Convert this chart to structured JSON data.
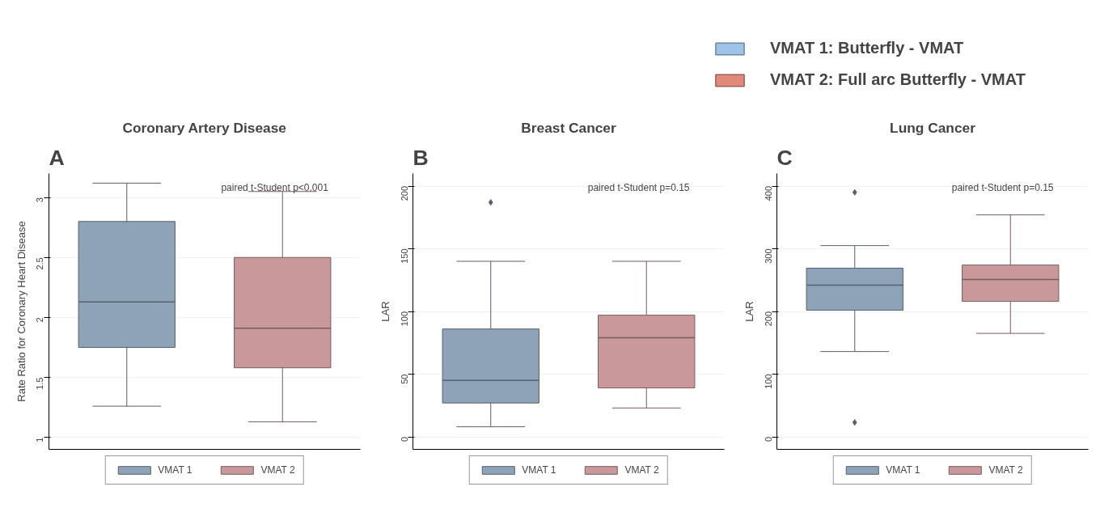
{
  "chart_data": [
    {
      "type": "other",
      "legend": "top right",
      "series": [
        {
          "name": "VMAT 1: Butterfly - VMAT",
          "color": "#9dc3e6"
        },
        {
          "name": "VMAT 2: Full arc Butterfly - VMAT",
          "color": "#e08a7a"
        }
      ]
    },
    {
      "type": "box",
      "subtitle": "A",
      "title": "Coronary Artery Disease",
      "ylabel": "Rate Ratio for Coronary Heart Disease",
      "categories": [
        null
      ],
      "ylim": [
        0.9,
        3.2
      ],
      "yticks": [
        1,
        1.5,
        2,
        2.5,
        3
      ],
      "grid": "y",
      "legend": "bottom",
      "tick_labels": "y",
      "annotations": [
        "paired t-Student p<0.001"
      ],
      "series": [
        {
          "name": "VMAT 1",
          "color": "#8ea3b8",
          "boxes": [
            {
              "low": 1.26,
              "q1": 1.75,
              "median": 2.13,
              "q3": 2.8,
              "high": 3.12
            }
          ]
        },
        {
          "name": "VMAT 2",
          "color": "#c8989b",
          "boxes": [
            {
              "low": 1.13,
              "q1": 1.58,
              "median": 1.91,
              "q3": 2.5,
              "high": 3.05
            }
          ]
        }
      ]
    },
    {
      "type": "box",
      "subtitle": "B",
      "title": "Breast Cancer",
      "ylabel": "LAR",
      "categories": [
        null
      ],
      "ylim": [
        -10,
        210
      ],
      "yticks": [
        0,
        50,
        100,
        150,
        200
      ],
      "grid": "y",
      "legend": "bottom",
      "tick_labels": "y",
      "annotations": [
        "paired t-Student p=0.15"
      ],
      "series": [
        {
          "name": "VMAT 1",
          "color": "#8ea3b8",
          "boxes": [
            {
              "low": 8,
              "q1": 27,
              "median": 45,
              "q3": 86,
              "high": 140,
              "outliers": [
                187
              ]
            }
          ]
        },
        {
          "name": "VMAT 2",
          "color": "#c8989b",
          "boxes": [
            {
              "low": 23,
              "q1": 39,
              "median": 79,
              "q3": 97,
              "high": 140
            }
          ]
        }
      ]
    },
    {
      "type": "box",
      "subtitle": "C",
      "title": "Lung Cancer",
      "ylabel": "LAR",
      "categories": [
        null
      ],
      "ylim": [
        -20,
        420
      ],
      "yticks": [
        0,
        100,
        200,
        300,
        400
      ],
      "grid": "y",
      "legend": "bottom",
      "tick_labels": "y",
      "annotations": [
        "paired t-Student p=0.15"
      ],
      "series": [
        {
          "name": "VMAT 1",
          "color": "#8ea3b8",
          "boxes": [
            {
              "low": 136,
              "q1": 202,
              "median": 242,
              "q3": 269,
              "high": 305,
              "outliers": [
                390,
                23
              ]
            }
          ]
        },
        {
          "name": "VMAT 2",
          "color": "#c8989b",
          "boxes": [
            {
              "low": 165,
              "q1": 216,
              "median": 251,
              "q3": 274,
              "high": 354
            }
          ]
        }
      ]
    }
  ]
}
